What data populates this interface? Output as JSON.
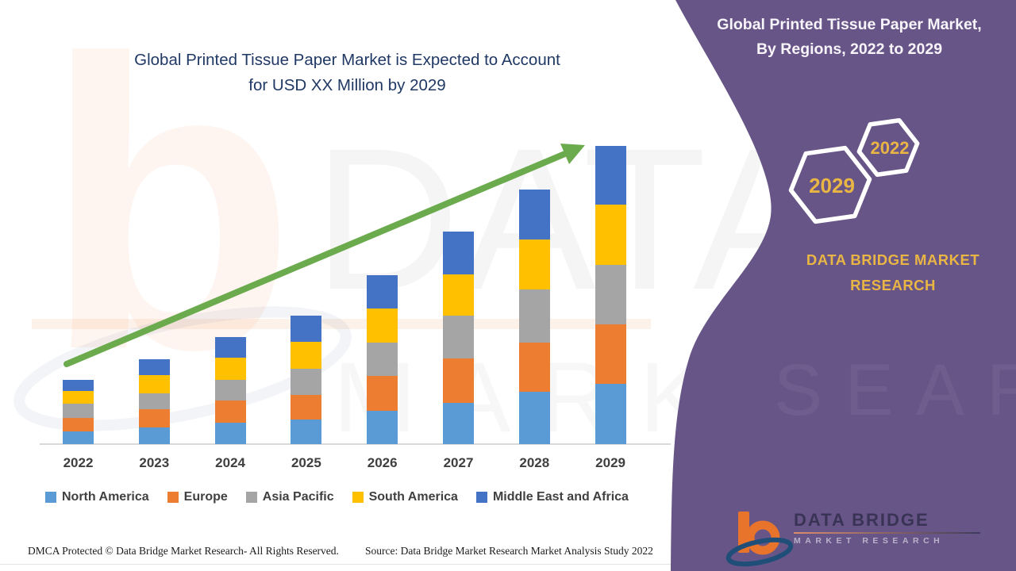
{
  "chart": {
    "title_line1": "Global Printed Tissue Paper Market is Expected to Account",
    "title_line2": "for USD XX Million by 2029",
    "title_color": "#1F3864"
  },
  "chart_data": {
    "type": "bar",
    "subtype": "stacked-vertical",
    "title": "Global Printed Tissue Paper Market is Expected to Account for USD XX Million by 2029",
    "categories": [
      "2022",
      "2023",
      "2024",
      "2025",
      "2026",
      "2027",
      "2028",
      "2029"
    ],
    "series": [
      {
        "name": "North America",
        "color": "#5B9BD5",
        "values": [
          16,
          21,
          27,
          31,
          42,
          52,
          66,
          76
        ]
      },
      {
        "name": "Europe",
        "color": "#ED7D31",
        "values": [
          17,
          23,
          28,
          31,
          44,
          56,
          62,
          75
        ]
      },
      {
        "name": "Asia Pacific",
        "color": "#A5A5A5",
        "values": [
          18,
          20,
          26,
          33,
          42,
          54,
          67,
          75
        ]
      },
      {
        "name": "South America",
        "color": "#FFC000",
        "values": [
          16,
          23,
          28,
          34,
          43,
          52,
          63,
          76
        ]
      },
      {
        "name": "Middle East and Africa",
        "color": "#4472C4",
        "values": [
          14,
          20,
          26,
          33,
          42,
          54,
          63,
          74
        ]
      }
    ],
    "totals": [
      81,
      107,
      135,
      162,
      213,
      268,
      321,
      376
    ],
    "value_axis": "not labeled (values are relative units, USD XX Million)",
    "xlabel": "",
    "ylabel": "",
    "grid": false,
    "legend_position": "bottom",
    "annotations": [
      "green upward trend arrow from 2022 to 2029"
    ]
  },
  "side_panel": {
    "color": "#675587",
    "title_line1": "Global Printed Tissue Paper Market,",
    "title_line2": "By Regions, 2022 to 2029",
    "hexagons": [
      {
        "label": "2029"
      },
      {
        "label": "2022"
      }
    ],
    "brand_line1": "DATA BRIDGE MARKET",
    "brand_line2": "RESEARCH",
    "accent_gold": "#E9B544",
    "arrow_green": "#6BAB4D"
  },
  "logo": {
    "name": "DATA BRIDGE",
    "subtitle": "MARKET RESEARCH"
  },
  "watermark": {
    "row1": "DATA BRI",
    "row2": "MARKET",
    "left_glyph": "b",
    "purple_row": "SEARCH"
  },
  "footer": {
    "left": "DMCA Protected © Data Bridge Market Research- All Rights Reserved.",
    "right": "Source: Data Bridge Market Research Market Analysis Study 2022"
  }
}
